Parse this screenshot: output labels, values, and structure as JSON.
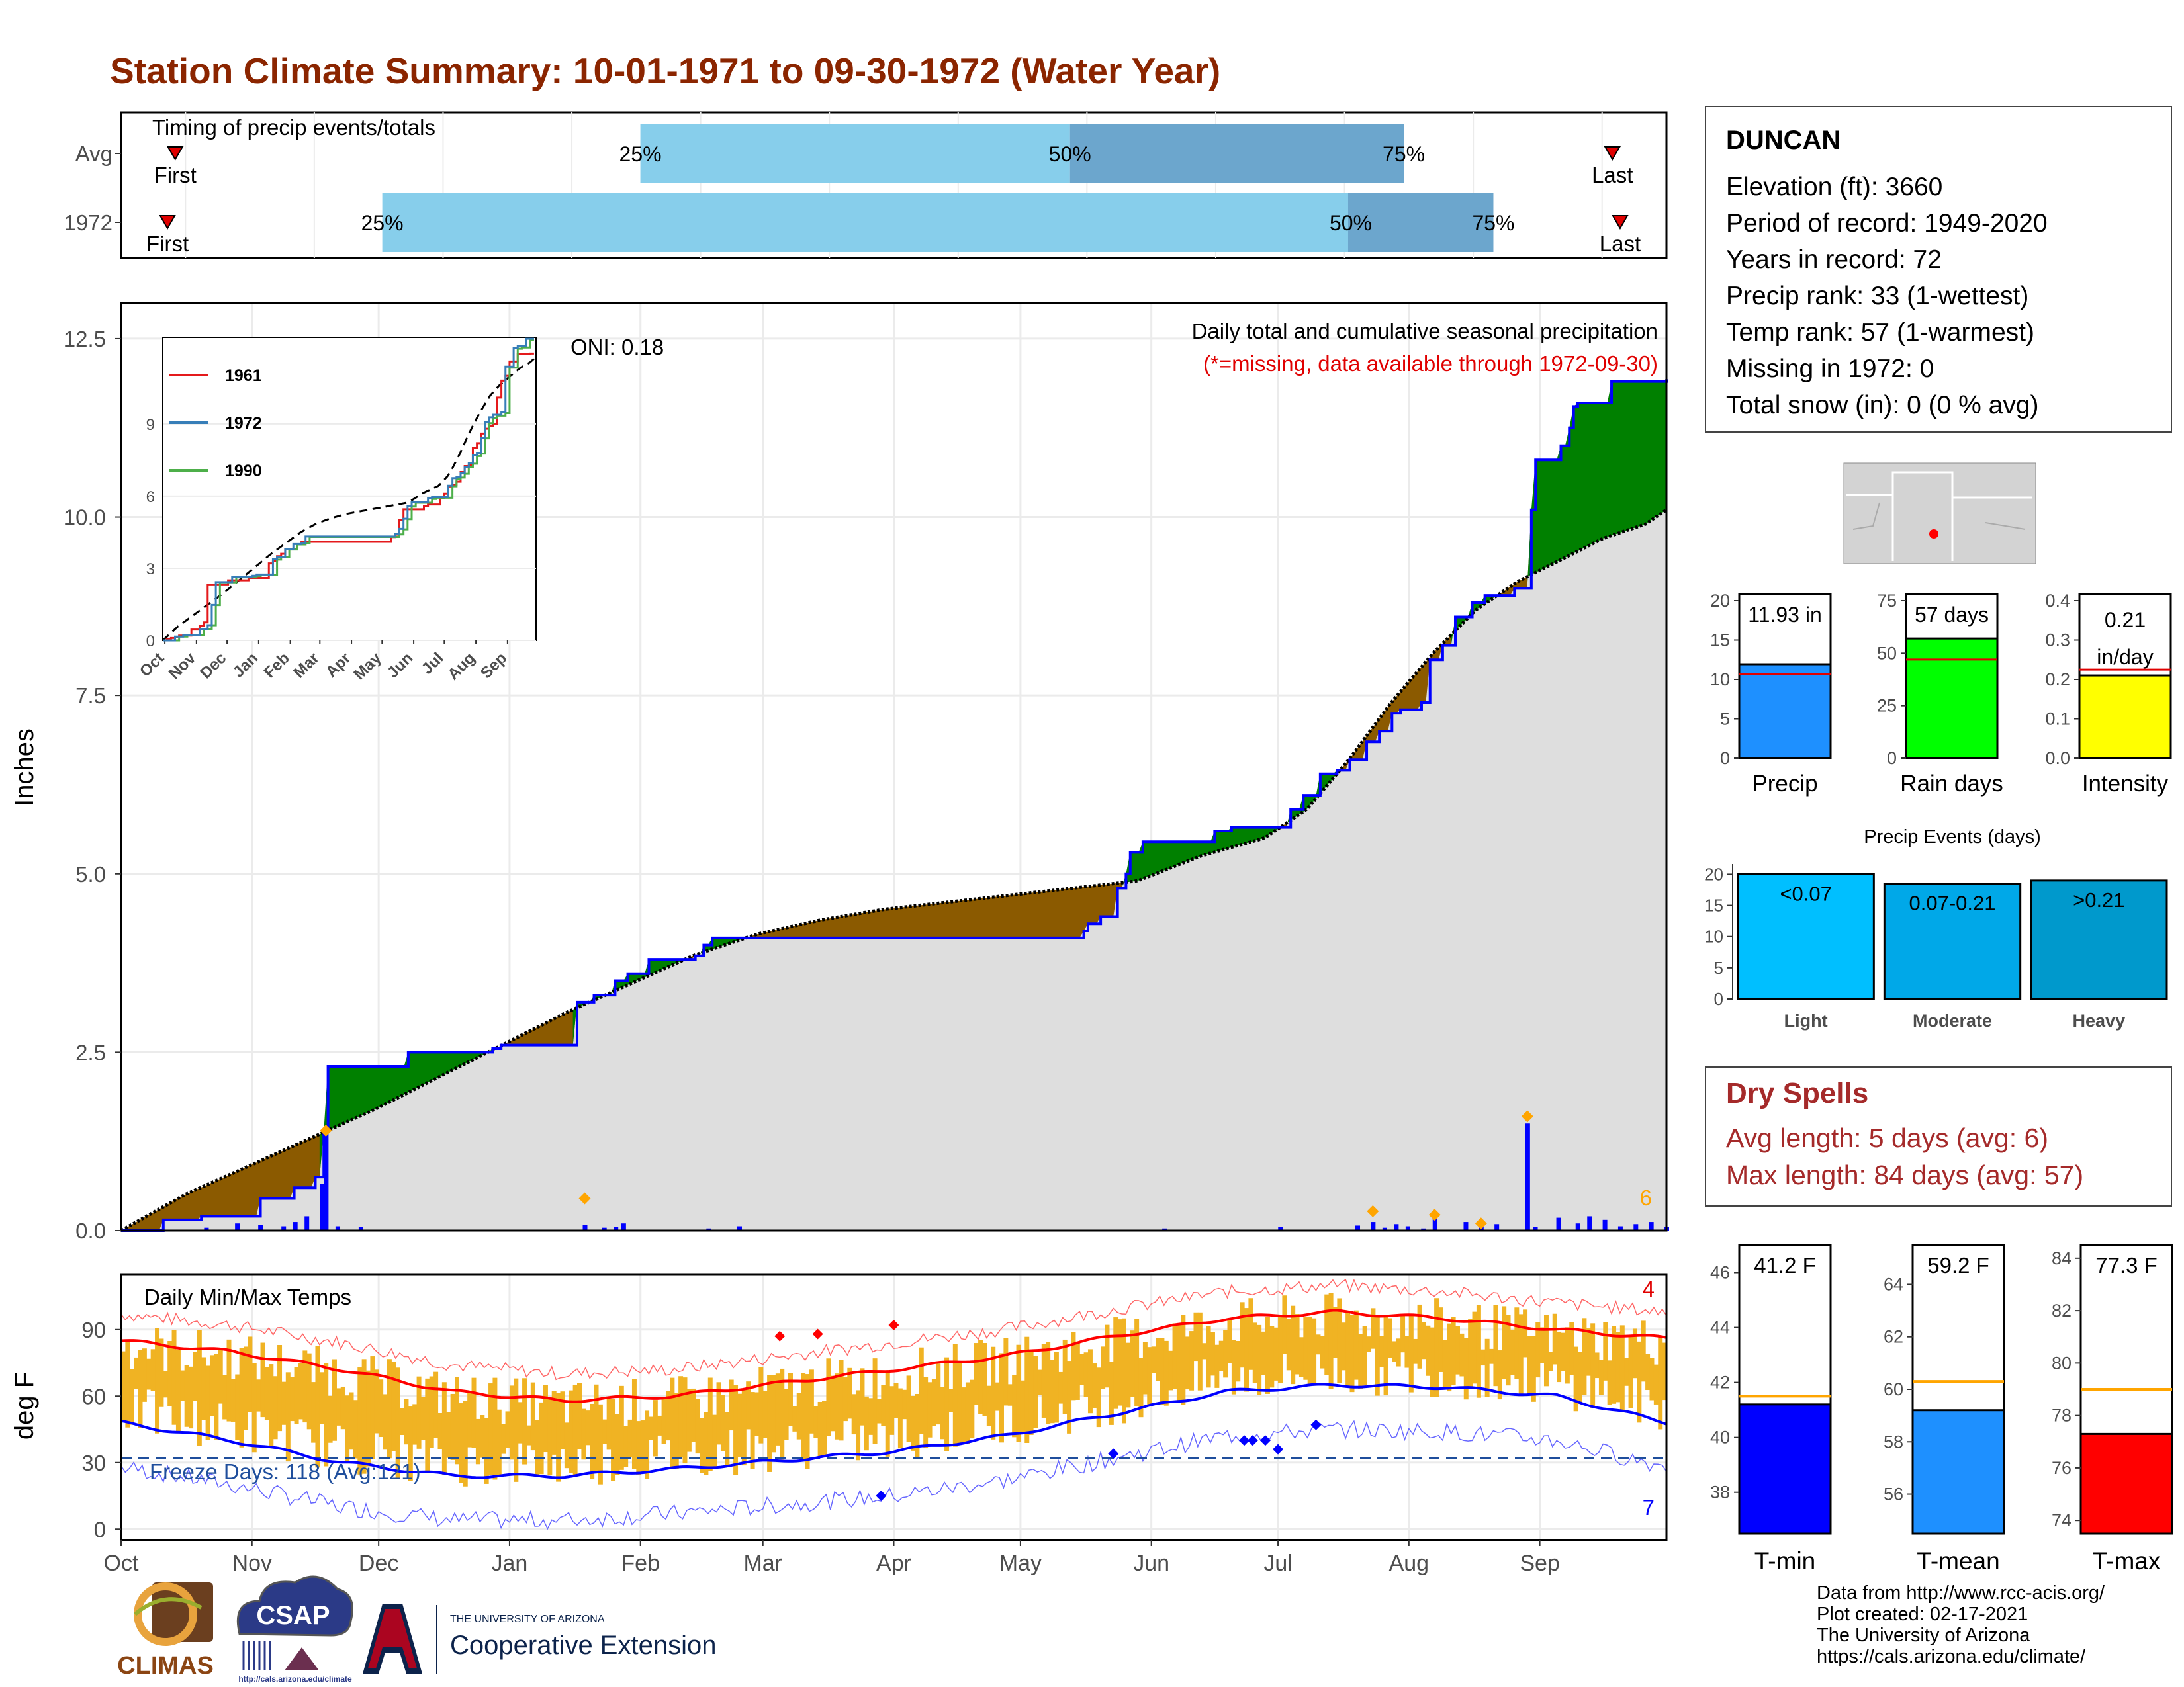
{
  "title": "Station Climate Summary: 10-01-1971 to 09-30-1972 (Water Year)",
  "timing": {
    "label": "Timing of precip events/totals",
    "rows": [
      {
        "label": "Avg",
        "p25": 0.336,
        "p50": 0.614,
        "p75": 0.83,
        "first": 0.035,
        "last": 0.965
      },
      {
        "label": "1972",
        "p25": 0.169,
        "p50": 0.794,
        "p75": 0.888,
        "first": 0.03,
        "last": 0.97
      }
    ],
    "p25_label": "25%",
    "p50_label": "50%",
    "p75_label": "75%",
    "first_label": "First",
    "last_label": "Last"
  },
  "precip": {
    "ylabel": "Inches",
    "yticks": [
      "0.0",
      "2.5",
      "5.0",
      "7.5",
      "10.0",
      "12.5"
    ],
    "title": "Daily total and cumulative seasonal precipitation",
    "subtitle": "(*=missing, data available through 1972-09-30)",
    "oni": "ONI: 0.18",
    "count": "6"
  },
  "inset": {
    "yticks": [
      "0",
      "3",
      "6",
      "9"
    ],
    "xticks": [
      "Oct",
      "Nov",
      "Dec",
      "Jan",
      "Feb",
      "Mar",
      "Apr",
      "May",
      "Jun",
      "Jul",
      "Aug",
      "Sep"
    ],
    "legend": [
      {
        "name": "1961",
        "color": "#e41a1c"
      },
      {
        "name": "1972",
        "color": "#377eb8"
      },
      {
        "name": "1990",
        "color": "#4daf4a"
      }
    ]
  },
  "temps": {
    "title": "Daily Min/Max Temps",
    "ylabel": "deg F",
    "yticks": [
      "0",
      "30",
      "60",
      "90"
    ],
    "freeze": "Freeze Days: 118 (Avg:121)",
    "count_high": "4",
    "count_low": "7",
    "xticks": [
      "Oct",
      "Nov",
      "Dec",
      "Jan",
      "Feb",
      "Mar",
      "Apr",
      "May",
      "Jun",
      "Jul",
      "Aug",
      "Sep"
    ]
  },
  "station": {
    "name": "DUNCAN",
    "lines": [
      "Elevation (ft): 3660",
      "Period of record: 1949-2020",
      "Years in record: 72",
      "Precip rank: 33 (1-wettest)",
      "Temp rank: 57 (1-warmest)",
      "Missing in 1972: 0",
      "Total snow (in): 0 (0 % avg)"
    ]
  },
  "mini_bars": [
    {
      "label": "Precip",
      "value": 11.93,
      "avg": 10.7,
      "text": "11.93 in",
      "ticks": [
        "0",
        "5",
        "10",
        "15",
        "20"
      ],
      "max": 20,
      "color": "#1e90ff"
    },
    {
      "label": "Rain days",
      "value": 57,
      "avg": 47,
      "text": "57 days",
      "ticks": [
        "0",
        "25",
        "50",
        "75"
      ],
      "max": 75,
      "color": "#00ff00"
    },
    {
      "label": "Intensity",
      "value": 0.21,
      "avg": 0.225,
      "text_lines": [
        "0.21",
        "in/day"
      ],
      "ticks": [
        "0.0",
        "0.1",
        "0.2",
        "0.3",
        "0.4"
      ],
      "max": 0.4,
      "color": "#ffff00"
    }
  ],
  "events": {
    "title": "Precip Events (days)",
    "ticks": [
      "0",
      "5",
      "10",
      "15",
      "20"
    ],
    "bars": [
      {
        "label": "Light",
        "text": "<0.07",
        "value": 20,
        "color": "#00bfff"
      },
      {
        "label": "Moderate",
        "text": "0.07-0.21",
        "value": 18.5,
        "color": "#00a8e8"
      },
      {
        "label": "Heavy",
        "text": ">0.21",
        "value": 19,
        "color": "#0099cc"
      }
    ]
  },
  "dry_spells": {
    "title": "Dry Spells",
    "lines": [
      "Avg length: 5 days (avg: 6)",
      "Max length: 84 days (avg: 57)"
    ]
  },
  "temp_bars": [
    {
      "label": "T-min",
      "value": 41.2,
      "avg": 41.5,
      "text": "41.2 F",
      "ticks": [
        "38",
        "40",
        "42",
        "44",
        "46"
      ],
      "min": 36.5,
      "max": 47,
      "color": "#0000ff"
    },
    {
      "label": "T-mean",
      "value": 59.2,
      "avg": 60.3,
      "text": "59.2 F",
      "ticks": [
        "56",
        "58",
        "60",
        "62",
        "64"
      ],
      "min": 54.5,
      "max": 65.5,
      "color": "#1e90ff"
    },
    {
      "label": "T-max",
      "value": 77.3,
      "avg": 79.0,
      "text": "77.3 F",
      "ticks": [
        "74",
        "76",
        "78",
        "80",
        "82",
        "84"
      ],
      "min": 73.5,
      "max": 84.5,
      "color": "#ff0000"
    }
  ],
  "logos": {
    "climas": "CLIMAS",
    "csap": "CSAP",
    "csap_url": "http://cals.arizona.edu/climate",
    "ua_small": "THE UNIVERSITY OF ARIZONA",
    "ua_big": "Cooperative Extension"
  },
  "footer": [
    "Data from http://www.rcc-acis.org/",
    "Plot created: 02-17-2021",
    "The University of Arizona",
    "https://cals.arizona.edu/climate/"
  ],
  "chart_data": {
    "type": "area",
    "title": "Daily total and cumulative seasonal precipitation",
    "ylabel": "Inches",
    "ylim": [
      0,
      13
    ],
    "x": [
      "Oct",
      "Nov",
      "Dec",
      "Jan",
      "Feb",
      "Mar",
      "Apr",
      "May",
      "Jun",
      "Jul",
      "Aug",
      "Sep"
    ],
    "cumulative_1972": [
      [
        0,
        0.0
      ],
      [
        10,
        0.15
      ],
      [
        20,
        0.2
      ],
      [
        36,
        0.45
      ],
      [
        44,
        0.6
      ],
      [
        50,
        0.75
      ],
      [
        52,
        1.4
      ],
      [
        53,
        2.3
      ],
      [
        70,
        2.3
      ],
      [
        74,
        2.5
      ],
      [
        96,
        2.55
      ],
      [
        98,
        2.6
      ],
      [
        117,
        2.6
      ],
      [
        118,
        3.2
      ],
      [
        122,
        3.3
      ],
      [
        127,
        3.5
      ],
      [
        131,
        3.6
      ],
      [
        136,
        3.8
      ],
      [
        148,
        3.85
      ],
      [
        150,
        4.0
      ],
      [
        152,
        4.1
      ],
      [
        180,
        4.1
      ],
      [
        215,
        4.1
      ],
      [
        248,
        4.1
      ],
      [
        249,
        4.2
      ],
      [
        250,
        4.3
      ],
      [
        253,
        4.4
      ],
      [
        257,
        4.8
      ],
      [
        260,
        5.0
      ],
      [
        261,
        5.3
      ],
      [
        264,
        5.45
      ],
      [
        280,
        5.45
      ],
      [
        283,
        5.6
      ],
      [
        287,
        5.65
      ],
      [
        300,
        5.65
      ],
      [
        302,
        5.9
      ],
      [
        306,
        6.1
      ],
      [
        310,
        6.4
      ],
      [
        314,
        6.45
      ],
      [
        318,
        6.6
      ],
      [
        322,
        6.85
      ],
      [
        325,
        7.0
      ],
      [
        328,
        7.25
      ],
      [
        331,
        7.3
      ],
      [
        336,
        7.4
      ],
      [
        338,
        8.0
      ],
      [
        341,
        8.2
      ],
      [
        345,
        8.6
      ],
      [
        349,
        8.8
      ],
      [
        352,
        8.9
      ],
      [
        360,
        9.0
      ],
      [
        364,
        10.1
      ],
      [
        366,
        10.8
      ],
      [
        368,
        10.8
      ],
      [
        372,
        11.0
      ],
      [
        374,
        11.25
      ],
      [
        375,
        11.55
      ],
      [
        377,
        11.6
      ],
      [
        385,
        11.9
      ],
      [
        400,
        11.93
      ]
    ],
    "cumulative_avg": [
      [
        0,
        0
      ],
      [
        30,
        0.5
      ],
      [
        60,
        0.9
      ],
      [
        90,
        1.3
      ],
      [
        120,
        1.7
      ],
      [
        150,
        2.15
      ],
      [
        180,
        2.6
      ],
      [
        210,
        3.05
      ],
      [
        240,
        3.45
      ],
      [
        270,
        3.85
      ],
      [
        300,
        4.15
      ],
      [
        330,
        4.35
      ],
      [
        360,
        4.5
      ],
      [
        390,
        4.6
      ],
      [
        420,
        4.7
      ],
      [
        450,
        4.8
      ],
      [
        480,
        4.9
      ],
      [
        510,
        5.25
      ],
      [
        540,
        5.5
      ],
      [
        560,
        5.9
      ],
      [
        580,
        6.6
      ],
      [
        600,
        7.4
      ],
      [
        620,
        8.1
      ],
      [
        640,
        8.7
      ],
      [
        660,
        9.1
      ],
      [
        680,
        9.4
      ],
      [
        700,
        9.7
      ],
      [
        720,
        9.9
      ],
      [
        730,
        10.1
      ]
    ],
    "daily_precip": [
      [
        22,
        0.04
      ],
      [
        30,
        0.1
      ],
      [
        36,
        0.08
      ],
      [
        42,
        0.06
      ],
      [
        45,
        0.12
      ],
      [
        48,
        0.2
      ],
      [
        52,
        0.65
      ],
      [
        53,
        1.4
      ],
      [
        56,
        0.06
      ],
      [
        62,
        0.05
      ],
      [
        120,
        0.08
      ],
      [
        125,
        0.04
      ],
      [
        128,
        0.05
      ],
      [
        130,
        0.1
      ],
      [
        152,
        0.03
      ],
      [
        160,
        0.06
      ],
      [
        270,
        0.03
      ],
      [
        300,
        0.05
      ],
      [
        320,
        0.07
      ],
      [
        324,
        0.12
      ],
      [
        327,
        0.04
      ],
      [
        330,
        0.09
      ],
      [
        333,
        0.06
      ],
      [
        337,
        0.03
      ],
      [
        340,
        0.24
      ],
      [
        348,
        0.12
      ],
      [
        352,
        0.05
      ],
      [
        356,
        0.09
      ],
      [
        364,
        1.5
      ],
      [
        366,
        0.05
      ],
      [
        372,
        0.18
      ],
      [
        377,
        0.1
      ],
      [
        380,
        0.2
      ],
      [
        384,
        0.15
      ],
      [
        388,
        0.06
      ],
      [
        392,
        0.09
      ],
      [
        396,
        0.12
      ],
      [
        400,
        0.05
      ]
    ],
    "temps": {
      "series": [
        {
          "name": "avg_max",
          "values": [
            85,
            80,
            72,
            62,
            58,
            60,
            66,
            72,
            78,
            87,
            95,
            98,
            95,
            90,
            86
          ]
        },
        {
          "name": "avg_min",
          "values": [
            48,
            40,
            30,
            24,
            24,
            27,
            31,
            35,
            42,
            52,
            62,
            65,
            64,
            60,
            48
          ]
        }
      ],
      "ylim": [
        -5,
        115
      ]
    }
  }
}
